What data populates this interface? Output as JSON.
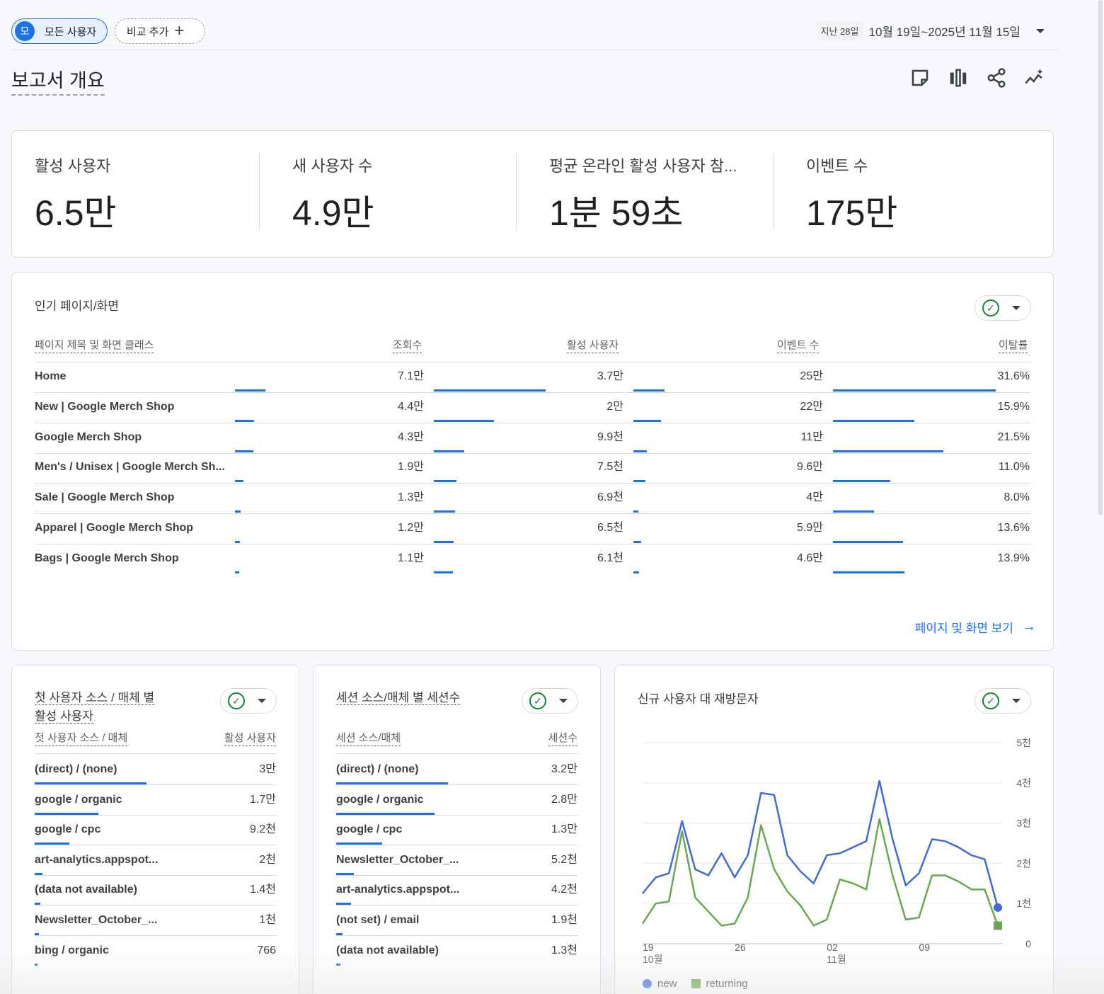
{
  "header": {
    "segment_avatar": "모",
    "segment_label": "모든 사용자",
    "compare_label": "비교 추가",
    "compare_icon": "plus-icon",
    "date_badge": "지난 28일",
    "date_range": "10월 19일~2025년 11월 15일"
  },
  "page_title": "보고서 개요",
  "toolbar_icons": [
    "note-icon",
    "compare-columns-icon",
    "share-icon",
    "insights-icon"
  ],
  "kpis": [
    {
      "label": "활성 사용자",
      "value": "6.5만"
    },
    {
      "label": "새 사용자 수",
      "value": "4.9만"
    },
    {
      "label": "평균 온라인 활성 사용자 참...",
      "value": "1분 59초"
    },
    {
      "label": "이벤트 수",
      "value": "175만"
    }
  ],
  "top_pages": {
    "title": "인기 페이지/화면",
    "columns": [
      "페이지 제목 및 화면 클래스",
      "조회수",
      "활성 사용자",
      "이벤트 수",
      "이탈률"
    ],
    "rows": [
      {
        "name": "Home",
        "views": "7.1만",
        "active": "3.7만",
        "events": "25만",
        "bounce": "31.6%",
        "views_frac": 1.0,
        "active_frac": 1.0,
        "events_frac": 1.0,
        "bounce_frac": 1.0
      },
      {
        "name": "New | Google Merch Shop",
        "views": "4.4만",
        "active": "2만",
        "events": "22만",
        "bounce": "15.9%",
        "views_frac": 0.62,
        "active_frac": 0.54,
        "events_frac": 0.88,
        "bounce_frac": 0.5
      },
      {
        "name": "Google Merch Shop",
        "views": "4.3만",
        "active": "9.9천",
        "events": "11만",
        "bounce": "21.5%",
        "views_frac": 0.6,
        "active_frac": 0.27,
        "events_frac": 0.44,
        "bounce_frac": 0.68
      },
      {
        "name": "Men's / Unisex | Google Merch Sh...",
        "views": "1.9만",
        "active": "7.5천",
        "events": "9.6만",
        "bounce": "11.0%",
        "views_frac": 0.27,
        "active_frac": 0.2,
        "events_frac": 0.38,
        "bounce_frac": 0.35
      },
      {
        "name": "Sale | Google Merch Shop",
        "views": "1.3만",
        "active": "6.9천",
        "events": "4만",
        "bounce": "8.0%",
        "views_frac": 0.18,
        "active_frac": 0.19,
        "events_frac": 0.16,
        "bounce_frac": 0.25
      },
      {
        "name": "Apparel | Google Merch Shop",
        "views": "1.2만",
        "active": "6.5천",
        "events": "5.9만",
        "bounce": "13.6%",
        "views_frac": 0.17,
        "active_frac": 0.18,
        "events_frac": 0.24,
        "bounce_frac": 0.43
      },
      {
        "name": "Bags | Google Merch Shop",
        "views": "1.1만",
        "active": "6.1천",
        "events": "4.6만",
        "bounce": "13.9%",
        "views_frac": 0.15,
        "active_frac": 0.17,
        "events_frac": 0.18,
        "bounce_frac": 0.44
      }
    ],
    "view_link": "페이지 및 화면 보기"
  },
  "first_source": {
    "title_line1": "첫 사용자 소스 / 매체 별",
    "title_line2": "활성 사용자",
    "columns": [
      "첫 사용자 소스 / 매체",
      "활성 사용자"
    ],
    "rows": [
      {
        "name": "(direct) / (none)",
        "value": "3만",
        "frac": 1.0
      },
      {
        "name": "google / organic",
        "value": "1.7만",
        "frac": 0.57
      },
      {
        "name": "google / cpc",
        "value": "9.2천",
        "frac": 0.31
      },
      {
        "name": "art-analytics.appspot...",
        "value": "2천",
        "frac": 0.07
      },
      {
        "name": "(data not available)",
        "value": "1.4천",
        "frac": 0.05
      },
      {
        "name": "Newsletter_October_...",
        "value": "1천",
        "frac": 0.035
      },
      {
        "name": "bing / organic",
        "value": "766",
        "frac": 0.026
      }
    ]
  },
  "session_source": {
    "title": "세션 소스/매체 별 세션수",
    "columns": [
      "세션 소스/매체",
      "세션수"
    ],
    "rows": [
      {
        "name": "(direct) / (none)",
        "value": "3.2만",
        "frac": 1.0
      },
      {
        "name": "google / organic",
        "value": "2.8만",
        "frac": 0.88
      },
      {
        "name": "google / cpc",
        "value": "1.3만",
        "frac": 0.41
      },
      {
        "name": "Newsletter_October_...",
        "value": "5.2천",
        "frac": 0.16
      },
      {
        "name": "art-analytics.appspot...",
        "value": "4.2천",
        "frac": 0.13
      },
      {
        "name": "(not set) / email",
        "value": "1.9천",
        "frac": 0.06
      },
      {
        "name": "(data not available)",
        "value": "1.3천",
        "frac": 0.04
      }
    ]
  },
  "new_vs_returning": {
    "title": "신규 사용자 대 재방문자",
    "legend_new": "new",
    "legend_returning": "returning"
  },
  "chart_data": {
    "type": "line",
    "title": "신규 사용자 대 재방문자",
    "x": [
      "10-19",
      "10-20",
      "10-21",
      "10-22",
      "10-23",
      "10-24",
      "10-25",
      "10-26",
      "10-27",
      "10-28",
      "10-29",
      "10-30",
      "10-31",
      "11-01",
      "11-02",
      "11-03",
      "11-04",
      "11-05",
      "11-06",
      "11-07",
      "11-08",
      "11-09",
      "11-10",
      "11-11",
      "11-12",
      "11-13",
      "11-14",
      "11-15"
    ],
    "x_tick_labels": [
      "19",
      "26",
      "02",
      "09"
    ],
    "x_tick_sublabels": [
      "10월",
      "",
      "11월",
      ""
    ],
    "y_tick_labels": [
      "0",
      "1천",
      "2천",
      "3천",
      "4천",
      "5천"
    ],
    "ylim": [
      0,
      5000
    ],
    "y_axis_side": "right",
    "grid": true,
    "series": [
      {
        "name": "new",
        "color": "#4169e1",
        "values": [
          1250,
          1650,
          1750,
          3050,
          1850,
          1700,
          2250,
          1650,
          2200,
          3750,
          3700,
          2200,
          1800,
          1500,
          2200,
          2250,
          2400,
          2550,
          4050,
          2600,
          1450,
          1750,
          2600,
          2550,
          2400,
          2200,
          2100,
          900
        ]
      },
      {
        "name": "returning",
        "color": "#6aa84f",
        "values": [
          500,
          1000,
          1050,
          2800,
          1150,
          800,
          450,
          500,
          1150,
          2950,
          1850,
          1300,
          950,
          450,
          600,
          1600,
          1500,
          1350,
          3100,
          1700,
          600,
          650,
          1700,
          1700,
          1550,
          1350,
          1350,
          450
        ]
      }
    ],
    "legend": "bottom-left"
  }
}
